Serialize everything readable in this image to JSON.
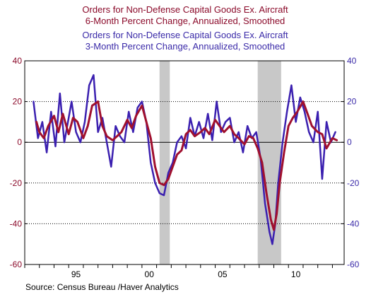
{
  "chart_data": {
    "type": "line",
    "titles": [
      "Orders for Non-Defense Capital Goods Ex. Aircraft",
      "6-Month Percent Change, Annualized, Smoothed",
      "Orders for Non-Defense Capital Goods Ex. Aircraft",
      "3-Month Percent Change, Annualized, Smoothed"
    ],
    "source": "Source:  Census Bureau /Haver Analytics",
    "xlim": [
      1992.0,
      2013.8
    ],
    "ylim": [
      -60,
      40
    ],
    "y_ticks": [
      40,
      20,
      0,
      -20,
      -40,
      -60
    ],
    "y_tick_labels": [
      "40",
      "20",
      "0",
      "-20",
      "-40",
      "-60"
    ],
    "x_tick_labels": [
      {
        "x": 1995,
        "label": "95"
      },
      {
        "x": 2000,
        "label": "00"
      },
      {
        "x": 2005,
        "label": "05"
      },
      {
        "x": 2010,
        "label": "10"
      }
    ],
    "grid": "dotted horizontal at 20, -20, -40; solid at 0",
    "recessions": [
      [
        2001.2,
        2001.9
      ],
      [
        2007.9,
        2009.5
      ]
    ],
    "colors": {
      "six_month": "#a0102e",
      "three_month": "#3b20b0",
      "recession": "#c8c8c8"
    },
    "series": [
      {
        "key": "six_month",
        "x": [
          1992.8,
          1993.0,
          1993.3,
          1993.6,
          1994.0,
          1994.3,
          1994.6,
          1995.0,
          1995.3,
          1995.6,
          1996.0,
          1996.3,
          1996.6,
          1997.0,
          1997.3,
          1997.6,
          1998.0,
          1998.3,
          1998.6,
          1999.0,
          1999.3,
          1999.6,
          2000.0,
          2000.3,
          2000.6,
          2000.9,
          2001.2,
          2001.5,
          2001.8,
          2002.1,
          2002.4,
          2002.7,
          2003.0,
          2003.3,
          2003.6,
          2004.0,
          2004.3,
          2004.6,
          2005.0,
          2005.3,
          2005.6,
          2006.0,
          2006.3,
          2006.6,
          2007.0,
          2007.3,
          2007.6,
          2007.9,
          2008.2,
          2008.5,
          2008.8,
          2009.0,
          2009.2,
          2009.4,
          2009.7,
          2010.0,
          2010.3,
          2010.6,
          2011.0,
          2011.3,
          2011.6,
          2012.0,
          2012.3,
          2012.6,
          2013.0,
          2013.3
        ],
        "values": [
          10,
          5,
          2,
          8,
          13,
          5,
          14,
          4,
          12,
          10,
          2,
          8,
          18,
          20,
          8,
          3,
          1,
          3,
          5,
          11,
          7,
          13,
          18,
          10,
          2,
          -12,
          -20,
          -21,
          -18,
          -12,
          -6,
          -4,
          4,
          6,
          3,
          5,
          7,
          4,
          11,
          8,
          5,
          8,
          4,
          2,
          -1,
          3,
          2,
          -3,
          -10,
          -25,
          -38,
          -43,
          -35,
          -20,
          -5,
          8,
          12,
          15,
          20,
          14,
          8,
          5,
          4,
          -3,
          2,
          1
        ]
      },
      {
        "key": "three_month",
        "x": [
          1992.6,
          1992.9,
          1993.2,
          1993.5,
          1993.8,
          1994.1,
          1994.4,
          1994.7,
          1995.0,
          1995.2,
          1995.5,
          1995.8,
          1996.1,
          1996.4,
          1996.7,
          1997.0,
          1997.3,
          1997.6,
          1997.9,
          1998.2,
          1998.5,
          1998.8,
          1999.1,
          1999.4,
          1999.7,
          2000.0,
          2000.3,
          2000.6,
          2000.9,
          2001.2,
          2001.5,
          2001.8,
          2002.1,
          2002.4,
          2002.7,
          2003.0,
          2003.3,
          2003.6,
          2003.9,
          2004.2,
          2004.5,
          2004.8,
          2005.1,
          2005.4,
          2005.7,
          2006.0,
          2006.3,
          2006.6,
          2006.9,
          2007.2,
          2007.5,
          2007.8,
          2008.1,
          2008.4,
          2008.7,
          2008.9,
          2009.1,
          2009.3,
          2009.6,
          2009.9,
          2010.2,
          2010.5,
          2010.8,
          2011.1,
          2011.4,
          2011.7,
          2012.0,
          2012.3,
          2012.6,
          2012.9,
          2013.2
        ],
        "values": [
          20,
          2,
          10,
          -5,
          15,
          -2,
          24,
          0,
          12,
          20,
          5,
          0,
          10,
          28,
          33,
          5,
          12,
          0,
          -12,
          8,
          3,
          0,
          15,
          5,
          17,
          20,
          10,
          -10,
          -20,
          -25,
          -26,
          -15,
          -10,
          0,
          3,
          -3,
          12,
          3,
          10,
          2,
          14,
          1,
          20,
          5,
          10,
          12,
          0,
          5,
          -5,
          8,
          2,
          5,
          -8,
          -30,
          -44,
          -50,
          -40,
          -20,
          0,
          15,
          28,
          10,
          22,
          15,
          5,
          0,
          15,
          -18,
          10,
          0,
          5
        ]
      }
    ]
  }
}
